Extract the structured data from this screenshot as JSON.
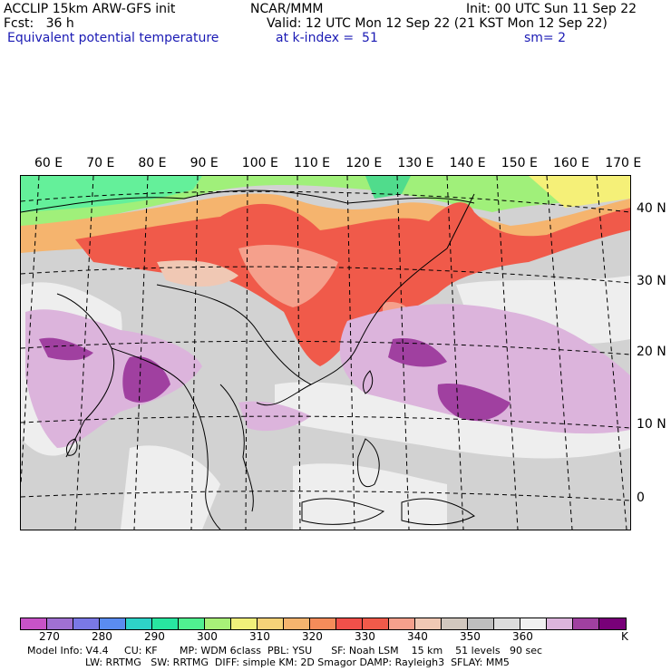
{
  "header": {
    "model": "ACCLIP 15km ARW-GFS init",
    "org": "NCAR/MMM",
    "init": "Init: 00 UTC Sun 11 Sep 22",
    "fcst": "Fcst:   36 h",
    "valid": "Valid: 12 UTC Mon 12 Sep 22 (21 KST Mon 12 Sep 22)",
    "field": "Equivalent potential temperature",
    "level": "at k-index =  51",
    "smooth": "sm= 2"
  },
  "map": {
    "lon_labels": [
      "60 E",
      "70 E",
      "80 E",
      "90 E",
      "100 E",
      "110 E",
      "120 E",
      "130 E",
      "140 E",
      "150 E",
      "160 E",
      "170 E"
    ],
    "lat_labels": [
      "40 N",
      "30 N",
      "20 N",
      "10 N",
      "0"
    ]
  },
  "colorbar": {
    "colors": [
      "#c853c8",
      "#a070d2",
      "#7a78e6",
      "#5a8cf0",
      "#2ed2c8",
      "#28e6a0",
      "#50f090",
      "#a8f078",
      "#f0f07a",
      "#f5d278",
      "#f5b46e",
      "#f58c5a",
      "#f0504a",
      "#f05a4a",
      "#f5a08c",
      "#f0c8b4",
      "#d2c8be",
      "#bebebe",
      "#dcdcdc",
      "#f0f0f0",
      "#dcb4dc",
      "#a040a0",
      "#780078"
    ],
    "labels": [
      "270",
      "280",
      "290",
      "300",
      "310",
      "320",
      "330",
      "340",
      "350",
      "360",
      "K"
    ]
  },
  "footer": {
    "line1": "Model Info: V4.4     CU: KF       MP: WDM 6class  PBL: YSU      SF: Noah LSM    15 km    51 levels   90 sec",
    "line2": "LW: RRTMG   SW: RRTMG  DIFF: simple KM: 2D Smagor DAMP: Rayleigh3  SFLAY: MM5"
  }
}
